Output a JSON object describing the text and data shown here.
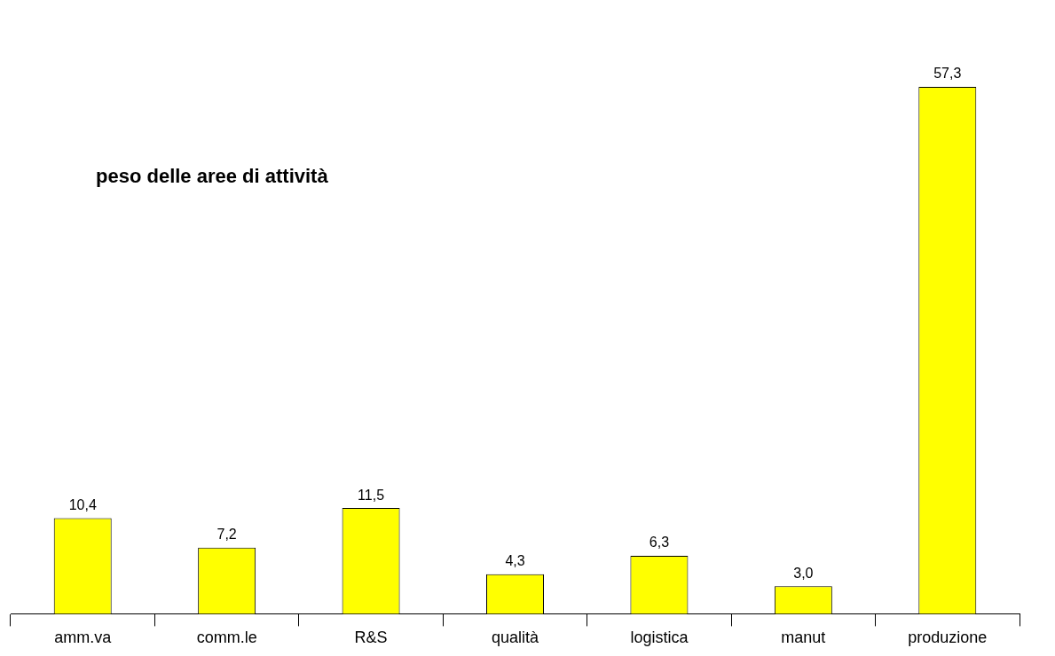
{
  "chart_data": {
    "type": "bar",
    "title": "peso delle aree di attività",
    "categories": [
      "amm.va",
      "comm.le",
      "R&S",
      "qualità",
      "logistica",
      "manut",
      "produzione"
    ],
    "values": [
      10.4,
      7.2,
      11.5,
      4.3,
      6.3,
      3.0,
      57.3
    ],
    "value_labels": [
      "10,4",
      "7,2",
      "11,5",
      "4,3",
      "6,3",
      "3,0",
      "57,3"
    ],
    "color": "#ffff00"
  }
}
